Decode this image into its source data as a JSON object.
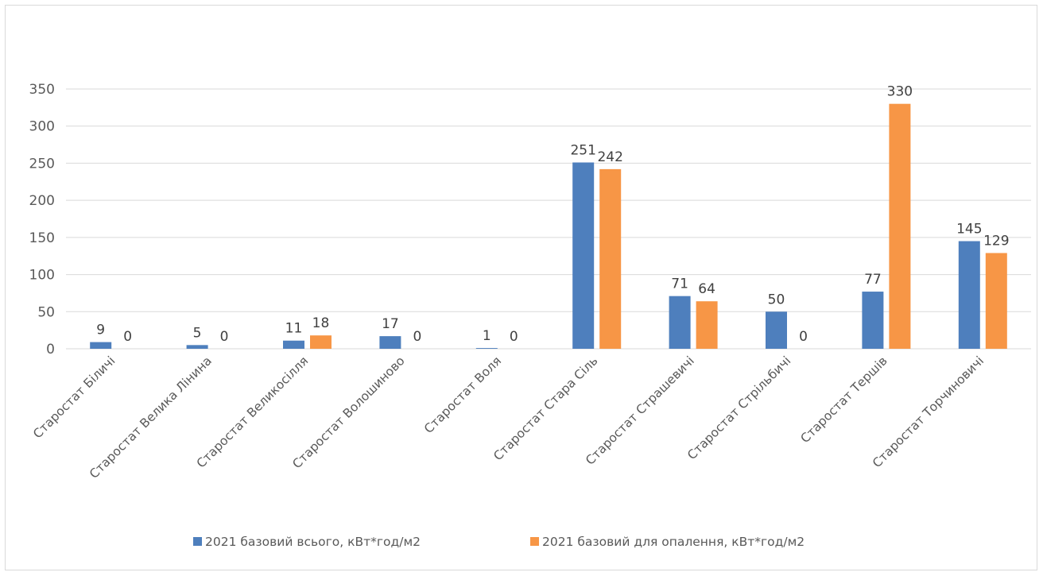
{
  "chart_data": {
    "type": "bar",
    "title": "",
    "xlabel": "",
    "ylabel": "",
    "ylim": [
      0,
      350
    ],
    "yticks": [
      0,
      50,
      100,
      150,
      200,
      250,
      300,
      350
    ],
    "grid": true,
    "legend_position": "bottom",
    "categories": [
      "Старостат Біличі",
      "Старостат Велика Лінина",
      "Старостат Великосілля",
      "Старостат Волошиново",
      "Старостат Воля",
      "Старостат Стара Сіль",
      "Старостат Страшевичі",
      "Старостат Стрільбичі",
      "Старостат Тершів",
      "Старостат Торчиновичі"
    ],
    "series": [
      {
        "name": "2021 базовий всього, кВт*год/м2",
        "color": "#4e7fbd",
        "values": [
          9,
          5,
          11,
          17,
          1,
          251,
          71,
          50,
          77,
          145
        ]
      },
      {
        "name": "2021 базовий для опалення, кВт*год/м2",
        "color": "#f79646",
        "values": [
          0,
          0,
          18,
          0,
          0,
          242,
          64,
          0,
          330,
          129
        ]
      }
    ]
  }
}
